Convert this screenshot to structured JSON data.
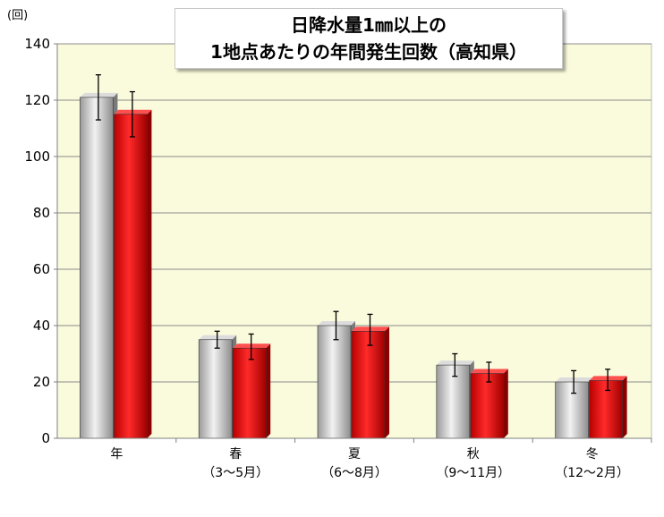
{
  "chart_data": {
    "type": "bar",
    "title_lines": [
      "日降水量1㎜以上の",
      "1地点あたりの年間発生回数（高知県）"
    ],
    "y_unit": "(回)",
    "ylim": [
      0,
      140
    ],
    "yticks": [
      0,
      20,
      40,
      60,
      80,
      100,
      120,
      140
    ],
    "categories": [
      [
        "年"
      ],
      [
        "春",
        "（3～5月）"
      ],
      [
        "夏",
        "（6～8月）"
      ],
      [
        "秋",
        "（9～11月）"
      ],
      [
        "冬",
        "（12～2月）"
      ]
    ],
    "series": [
      {
        "color": "#c0c0c0",
        "values": [
          121,
          35,
          40,
          26,
          20
        ],
        "error_low": [
          113,
          32,
          35,
          22,
          16
        ],
        "error_high": [
          129,
          38,
          45,
          30,
          24
        ]
      },
      {
        "color": "#ff0000",
        "values": [
          115,
          32,
          38,
          23,
          20.5
        ],
        "error_low": [
          107,
          28,
          33,
          20,
          17
        ],
        "error_high": [
          123,
          37,
          44,
          27,
          24.5
        ]
      }
    ],
    "grid": true,
    "plot_background": "#fafadc"
  }
}
